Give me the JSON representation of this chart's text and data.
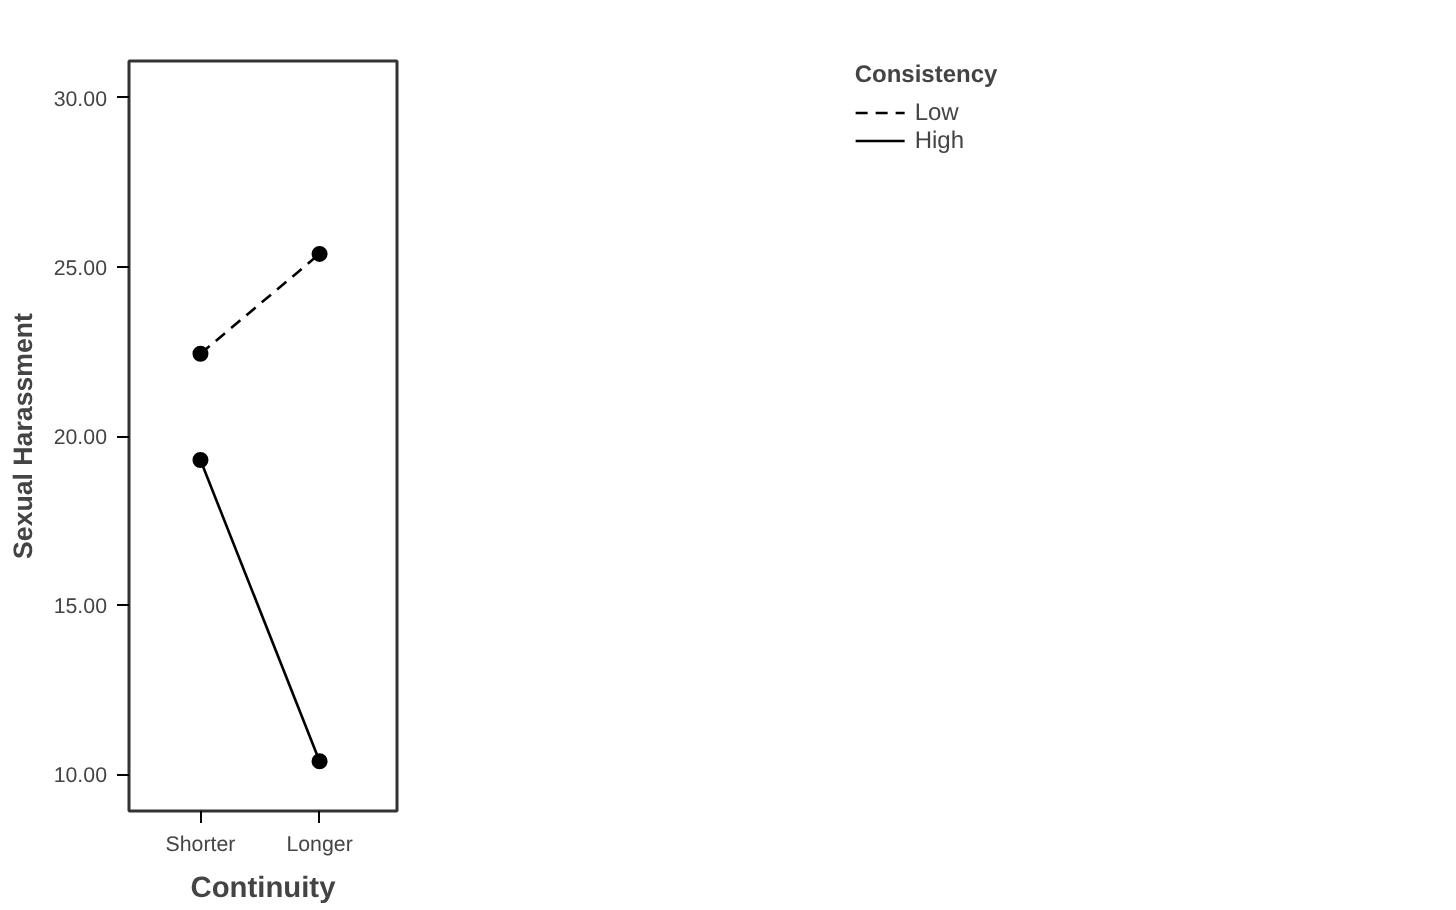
{
  "chart_data": {
    "type": "line",
    "xlabel": "Continuity",
    "ylabel": "Sexual Harassment",
    "legend_title": "Consistency",
    "categories": [
      "Shorter",
      "Longer"
    ],
    "series": [
      {
        "name": "Low",
        "color": "#000000",
        "values": [
          22.43,
          25.38
        ],
        "line_style": "dashed"
      },
      {
        "name": "High",
        "color": "#000000",
        "values": [
          19.29,
          10.39
        ],
        "line_style": "solid"
      }
    ],
    "ylim": [
      8.92,
      31.08
    ],
    "yticks": [
      {
        "value": 10,
        "label": "10.00"
      },
      {
        "value": 15,
        "label": "15.00"
      },
      {
        "value": 20,
        "label": "20.00"
      },
      {
        "value": 25,
        "label": "25.00"
      },
      {
        "value": 30,
        "label": "30.00"
      }
    ],
    "grid": false,
    "legend": "top right",
    "marker": "circle"
  }
}
